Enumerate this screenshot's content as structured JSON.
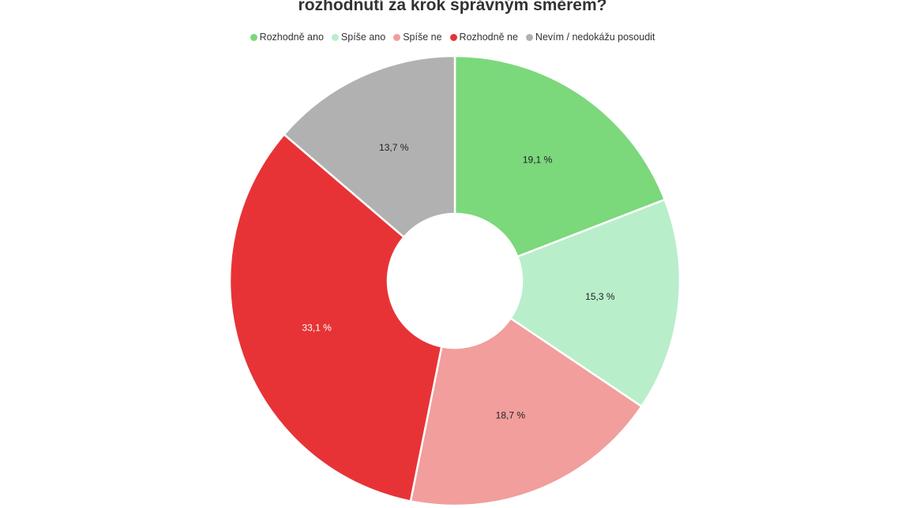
{
  "chart_data": {
    "type": "pie",
    "title": "rozhodnutí za krok správným směrem?",
    "legend_position": "top",
    "categories": [
      "Rozhodně ano",
      "Spíše ano",
      "Spíše ne",
      "Rozhodně ne",
      "Nevím / nedokážu posoudit"
    ],
    "values": [
      19.1,
      15.3,
      18.7,
      33.1,
      13.7
    ],
    "data_labels": [
      "19,1 %",
      "15,3 %",
      "18,7 %",
      "33,1 %",
      "13,7 %"
    ],
    "colors": [
      "#7bd87b",
      "#b9eecb",
      "#f19e9c",
      "#e73336",
      "#b1b1b1"
    ],
    "label_colors": [
      "#222222",
      "#222222",
      "#222222",
      "#ffffff",
      "#222222"
    ],
    "donut": true
  }
}
